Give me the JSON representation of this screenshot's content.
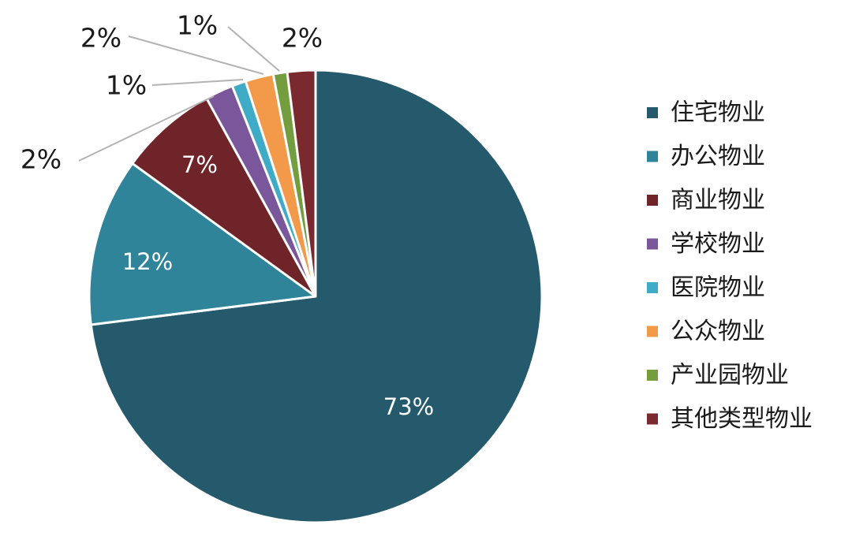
{
  "chart_data": {
    "type": "pie",
    "title": "",
    "legend_position": "right",
    "slices": [
      {
        "label": "住宅物业",
        "value": 73,
        "display": "73%",
        "color": "#245a6b"
      },
      {
        "label": "办公物业",
        "value": 12,
        "display": "12%",
        "color": "#2f8499"
      },
      {
        "label": "商业物业",
        "value": 7,
        "display": "7%",
        "color": "#6e2428"
      },
      {
        "label": "学校物业",
        "value": 2,
        "display": "2%",
        "color": "#7a579b"
      },
      {
        "label": "医院物业",
        "value": 1,
        "display": "1%",
        "color": "#40abc7"
      },
      {
        "label": "公众物业",
        "value": 2,
        "display": "2%",
        "color": "#f39a4a"
      },
      {
        "label": "产业园物业",
        "value": 1,
        "display": "1%",
        "color": "#739d3f"
      },
      {
        "label": "其他类型物业",
        "value": 2,
        "display": "2%",
        "color": "#7a2a2f"
      }
    ]
  }
}
